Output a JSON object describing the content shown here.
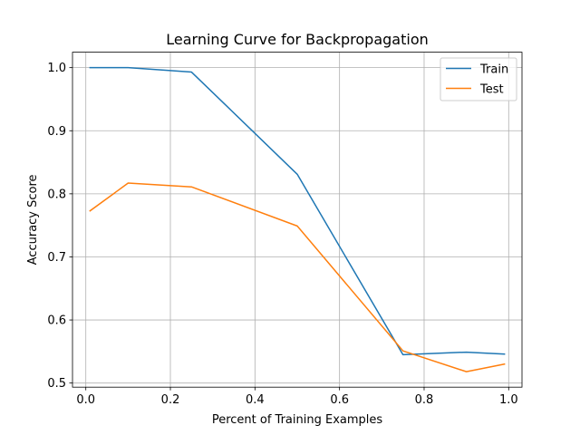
{
  "chart_data": {
    "type": "line",
    "title": "Learning Curve for Backpropagation",
    "xlabel": "Percent of Training Examples",
    "ylabel": "Accuracy Score",
    "xlim": [
      -0.0315,
      1.0315
    ],
    "ylim": [
      0.4935,
      1.0245
    ],
    "xticks": [
      0.0,
      0.2,
      0.4,
      0.6,
      0.8,
      1.0
    ],
    "xtick_labels": [
      "0.0",
      "0.2",
      "0.4",
      "0.6",
      "0.8",
      "1.0"
    ],
    "yticks": [
      0.5,
      0.6,
      0.7,
      0.8,
      0.9,
      1.0
    ],
    "ytick_labels": [
      "0.5",
      "0.6",
      "0.7",
      "0.8",
      "0.9",
      "1.0"
    ],
    "grid": true,
    "legend_position": "top-right",
    "x": [
      0.01,
      0.1,
      0.25,
      0.5,
      0.75,
      0.9,
      0.99
    ],
    "series": [
      {
        "name": "Train",
        "color": "#1f77b4",
        "values": [
          1.0,
          1.0,
          0.993,
          0.831,
          0.545,
          0.549,
          0.546
        ]
      },
      {
        "name": "Test",
        "color": "#ff7f0e",
        "values": [
          0.773,
          0.817,
          0.811,
          0.749,
          0.551,
          0.518,
          0.53
        ]
      }
    ]
  }
}
